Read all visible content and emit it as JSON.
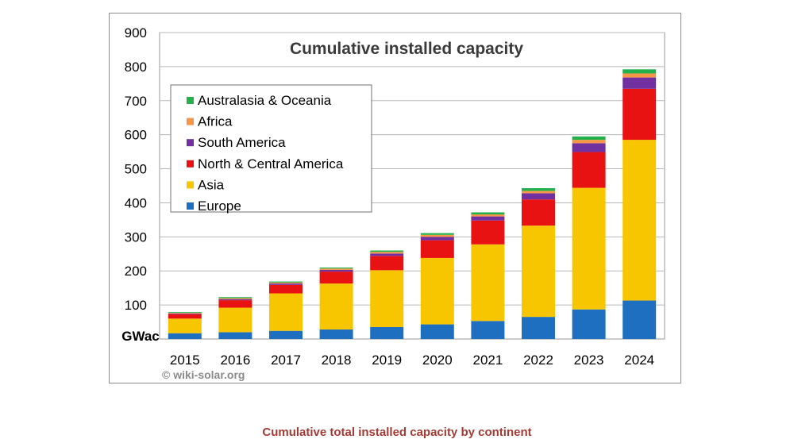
{
  "chart_data": {
    "type": "bar",
    "stacked": true,
    "title": "Cumulative installed capacity",
    "ylabel": "",
    "unit_label": "GWac",
    "ylim": [
      0,
      900
    ],
    "yticks": [
      100,
      200,
      300,
      400,
      500,
      600,
      700,
      800,
      900
    ],
    "grid": true,
    "legend_position": "top-left",
    "categories": [
      "2015",
      "2016",
      "2017",
      "2018",
      "2019",
      "2020",
      "2021",
      "2022",
      "2023",
      "2024"
    ],
    "series": [
      {
        "name": "Europe",
        "color": "#1f6fc0",
        "values": [
          17,
          20,
          24,
          28,
          35,
          43,
          53,
          65,
          87,
          113
        ]
      },
      {
        "name": "Asia",
        "color": "#f8c600",
        "values": [
          43,
          72,
          110,
          135,
          167,
          195,
          225,
          268,
          357,
          472
        ]
      },
      {
        "name": "North & Central America",
        "color": "#e81212",
        "values": [
          13,
          22,
          25,
          35,
          42,
          52,
          70,
          77,
          105,
          150
        ]
      },
      {
        "name": "South America",
        "color": "#7030a0",
        "values": [
          2,
          3,
          4,
          5,
          7,
          10,
          12,
          18,
          26,
          33
        ]
      },
      {
        "name": "Africa",
        "color": "#f79646",
        "values": [
          2,
          3,
          3,
          4,
          5,
          6,
          6,
          7,
          10,
          12
        ]
      },
      {
        "name": "Australasia & Oceania",
        "color": "#22b14c",
        "values": [
          2,
          3,
          3,
          3,
          4,
          5,
          6,
          8,
          10,
          12
        ]
      }
    ],
    "legend_order": [
      "Australasia & Oceania",
      "Africa",
      "South America",
      "North & Central America",
      "Asia",
      "Europe"
    ],
    "copyright": "© wiki-solar.org"
  },
  "caption": "Cumulative total installed capacity by continent"
}
